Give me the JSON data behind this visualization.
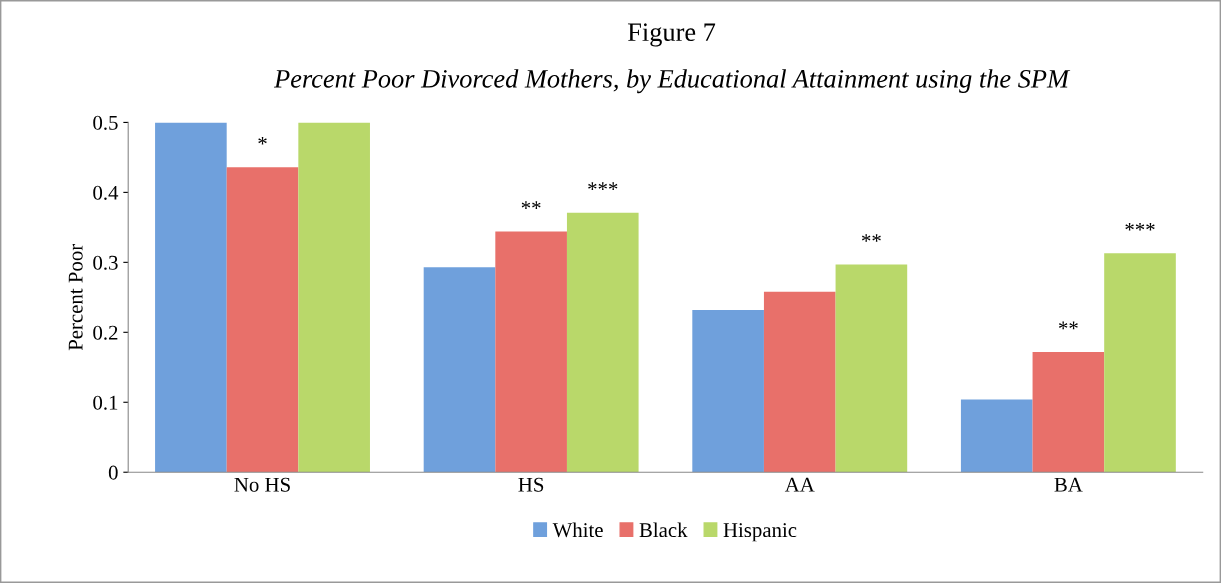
{
  "chart_data": {
    "type": "bar",
    "title": "Figure 7",
    "subtitle": "Percent Poor Divorced Mothers, by Educational Attainment using the SPM",
    "ylabel": "Percent Poor",
    "categories": [
      "No HS",
      "HS",
      "AA",
      "BA"
    ],
    "series": [
      {
        "name": "White",
        "color": "#6fa0dc",
        "values": [
          0.5,
          0.293,
          0.232,
          0.104
        ]
      },
      {
        "name": "Black",
        "color": "#e8706a",
        "values": [
          0.436,
          0.344,
          0.258,
          0.172
        ]
      },
      {
        "name": "Hispanic",
        "color": "#b9d86a",
        "values": [
          0.5,
          0.371,
          0.297,
          0.313
        ]
      }
    ],
    "ylim": [
      0,
      0.5
    ],
    "yticks": [
      0,
      0.1,
      0.2,
      0.3,
      0.4,
      0.5
    ],
    "grid": false,
    "legend": "bottom",
    "annotations": [
      {
        "text": "*",
        "y": 0.436
      },
      {
        "text": "**",
        "y": 0.344
      },
      {
        "text": "***",
        "y": 0.371
      },
      {
        "text": "**",
        "y": 0.297
      },
      {
        "text": "**",
        "y": 0.172
      },
      {
        "text": "***",
        "y": 0.313
      }
    ]
  }
}
